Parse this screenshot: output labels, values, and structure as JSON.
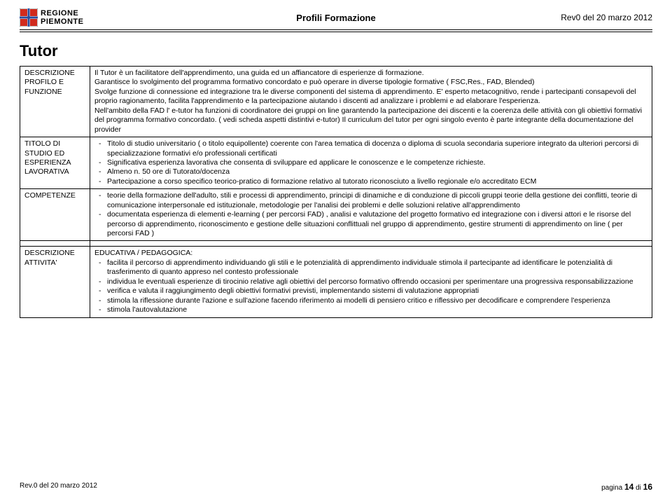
{
  "header": {
    "region_line1": "REGIONE",
    "region_line2": "PIEMONTE",
    "center": "Profili Formazione",
    "right": "Rev0 del 20 marzo 2012"
  },
  "title": "Tutor",
  "rows": {
    "r1_label": "DESCRIZIONE PROFILO E FUNZIONE",
    "r1_body": "Il Tutor è un facilitatore dell'apprendimento, una guida ed un affiancatore di esperienze di formazione.\nGarantisce lo svolgimento del programma formativo concordato e può operare in diverse tipologie formative ( FSC,Res., FAD, Blended)\nSvolge funzione di connessione ed integrazione tra le diverse componenti del sistema di apprendimento. E' esperto metacognitivo, rende i partecipanti consapevoli del proprio ragionamento, facilita l'apprendimento e la partecipazione aiutando i discenti ad analizzare i problemi e ad elaborare l'esperienza.\nNell'ambito della FAD l' e-tutor ha funzioni di coordinatore dei gruppi on line garantendo la partecipazione dei discenti e la coerenza delle attività con gli obiettivi formativi del programma formativo concordato. ( vedi scheda aspetti distintivi e-tutor) Il curriculum del tutor per ogni singolo evento è parte integrante della documentazione del provider",
    "r2_label": "TITOLO DI STUDIO ED ESPERIENZA LAVORATIVA",
    "r2_items": [
      "Titolo di studio universitario ( o titolo equipollente) coerente con l'area tematica di docenza o diploma di scuola secondaria superiore integrato da ulteriori percorsi di specializzazione formativi e/o professionali certificati",
      "Significativa esperienza lavorativa che consenta di sviluppare ed applicare le conoscenze e le competenze richieste.",
      "Almeno n. 50 ore di Tutorato/docenza",
      "Partecipazione a corso specifico teorico-pratico di formazione relativo al tutorato riconosciuto a livello regionale e/o accreditato ECM"
    ],
    "r3_label": "COMPETENZE",
    "r3_items": [
      "teorie della formazione dell'adulto, stili e processi di apprendimento, principi di dinamiche e di conduzione di piccoli gruppi teorie della gestione dei conflitti, teorie di comunicazione interpersonale ed istituzionale, metodologie per l'analisi dei problemi e delle soluzioni relative all'apprendimento",
      "documentata esperienza di elementi e-learning ( per percorsi FAD) , analisi e valutazione del progetto formativo ed integrazione con i diversi attori e le risorse del percorso di apprendimento, riconoscimento e gestione delle situazioni conflittuali nel gruppo di apprendimento, gestire strumenti di apprendimento on line ( per percorsi FAD )"
    ],
    "r4_label": "DESCRIZIONE ATTIVITA'",
    "r4_head": "EDUCATIVA / PEDAGOGICA:",
    "r4_items": [
      "facilita il percorso di apprendimento individuando gli stili e le potenzialità di apprendimento individuale stimola il partecipante ad identificare le potenzialità di trasferimento di quanto appreso nel contesto professionale",
      "individua le eventuali esperienze di tirocinio relative agli obiettivi del percorso formativo offrendo occasioni per sperimentare una progressiva responsabilizzazione",
      "verifica e valuta il raggiungimento degli obiettivi formativi previsti, implementando sistemi di valutazione appropriati",
      "stimola la riflessione durante l'azione e sull'azione facendo riferimento ai modelli di pensiero critico e riflessivo per decodificare e comprendere l'esperienza",
      "stimola l'autovalutazione"
    ]
  },
  "footer": {
    "left": "Rev.0 del 20 marzo 2012",
    "page_prefix": "pagina ",
    "page_num": "14",
    "page_of": " di ",
    "page_total": "16"
  },
  "colors": {
    "flag_red": "#d12b1e",
    "flag_blue": "#2a4b9b",
    "text": "#000000",
    "bg": "#ffffff"
  }
}
